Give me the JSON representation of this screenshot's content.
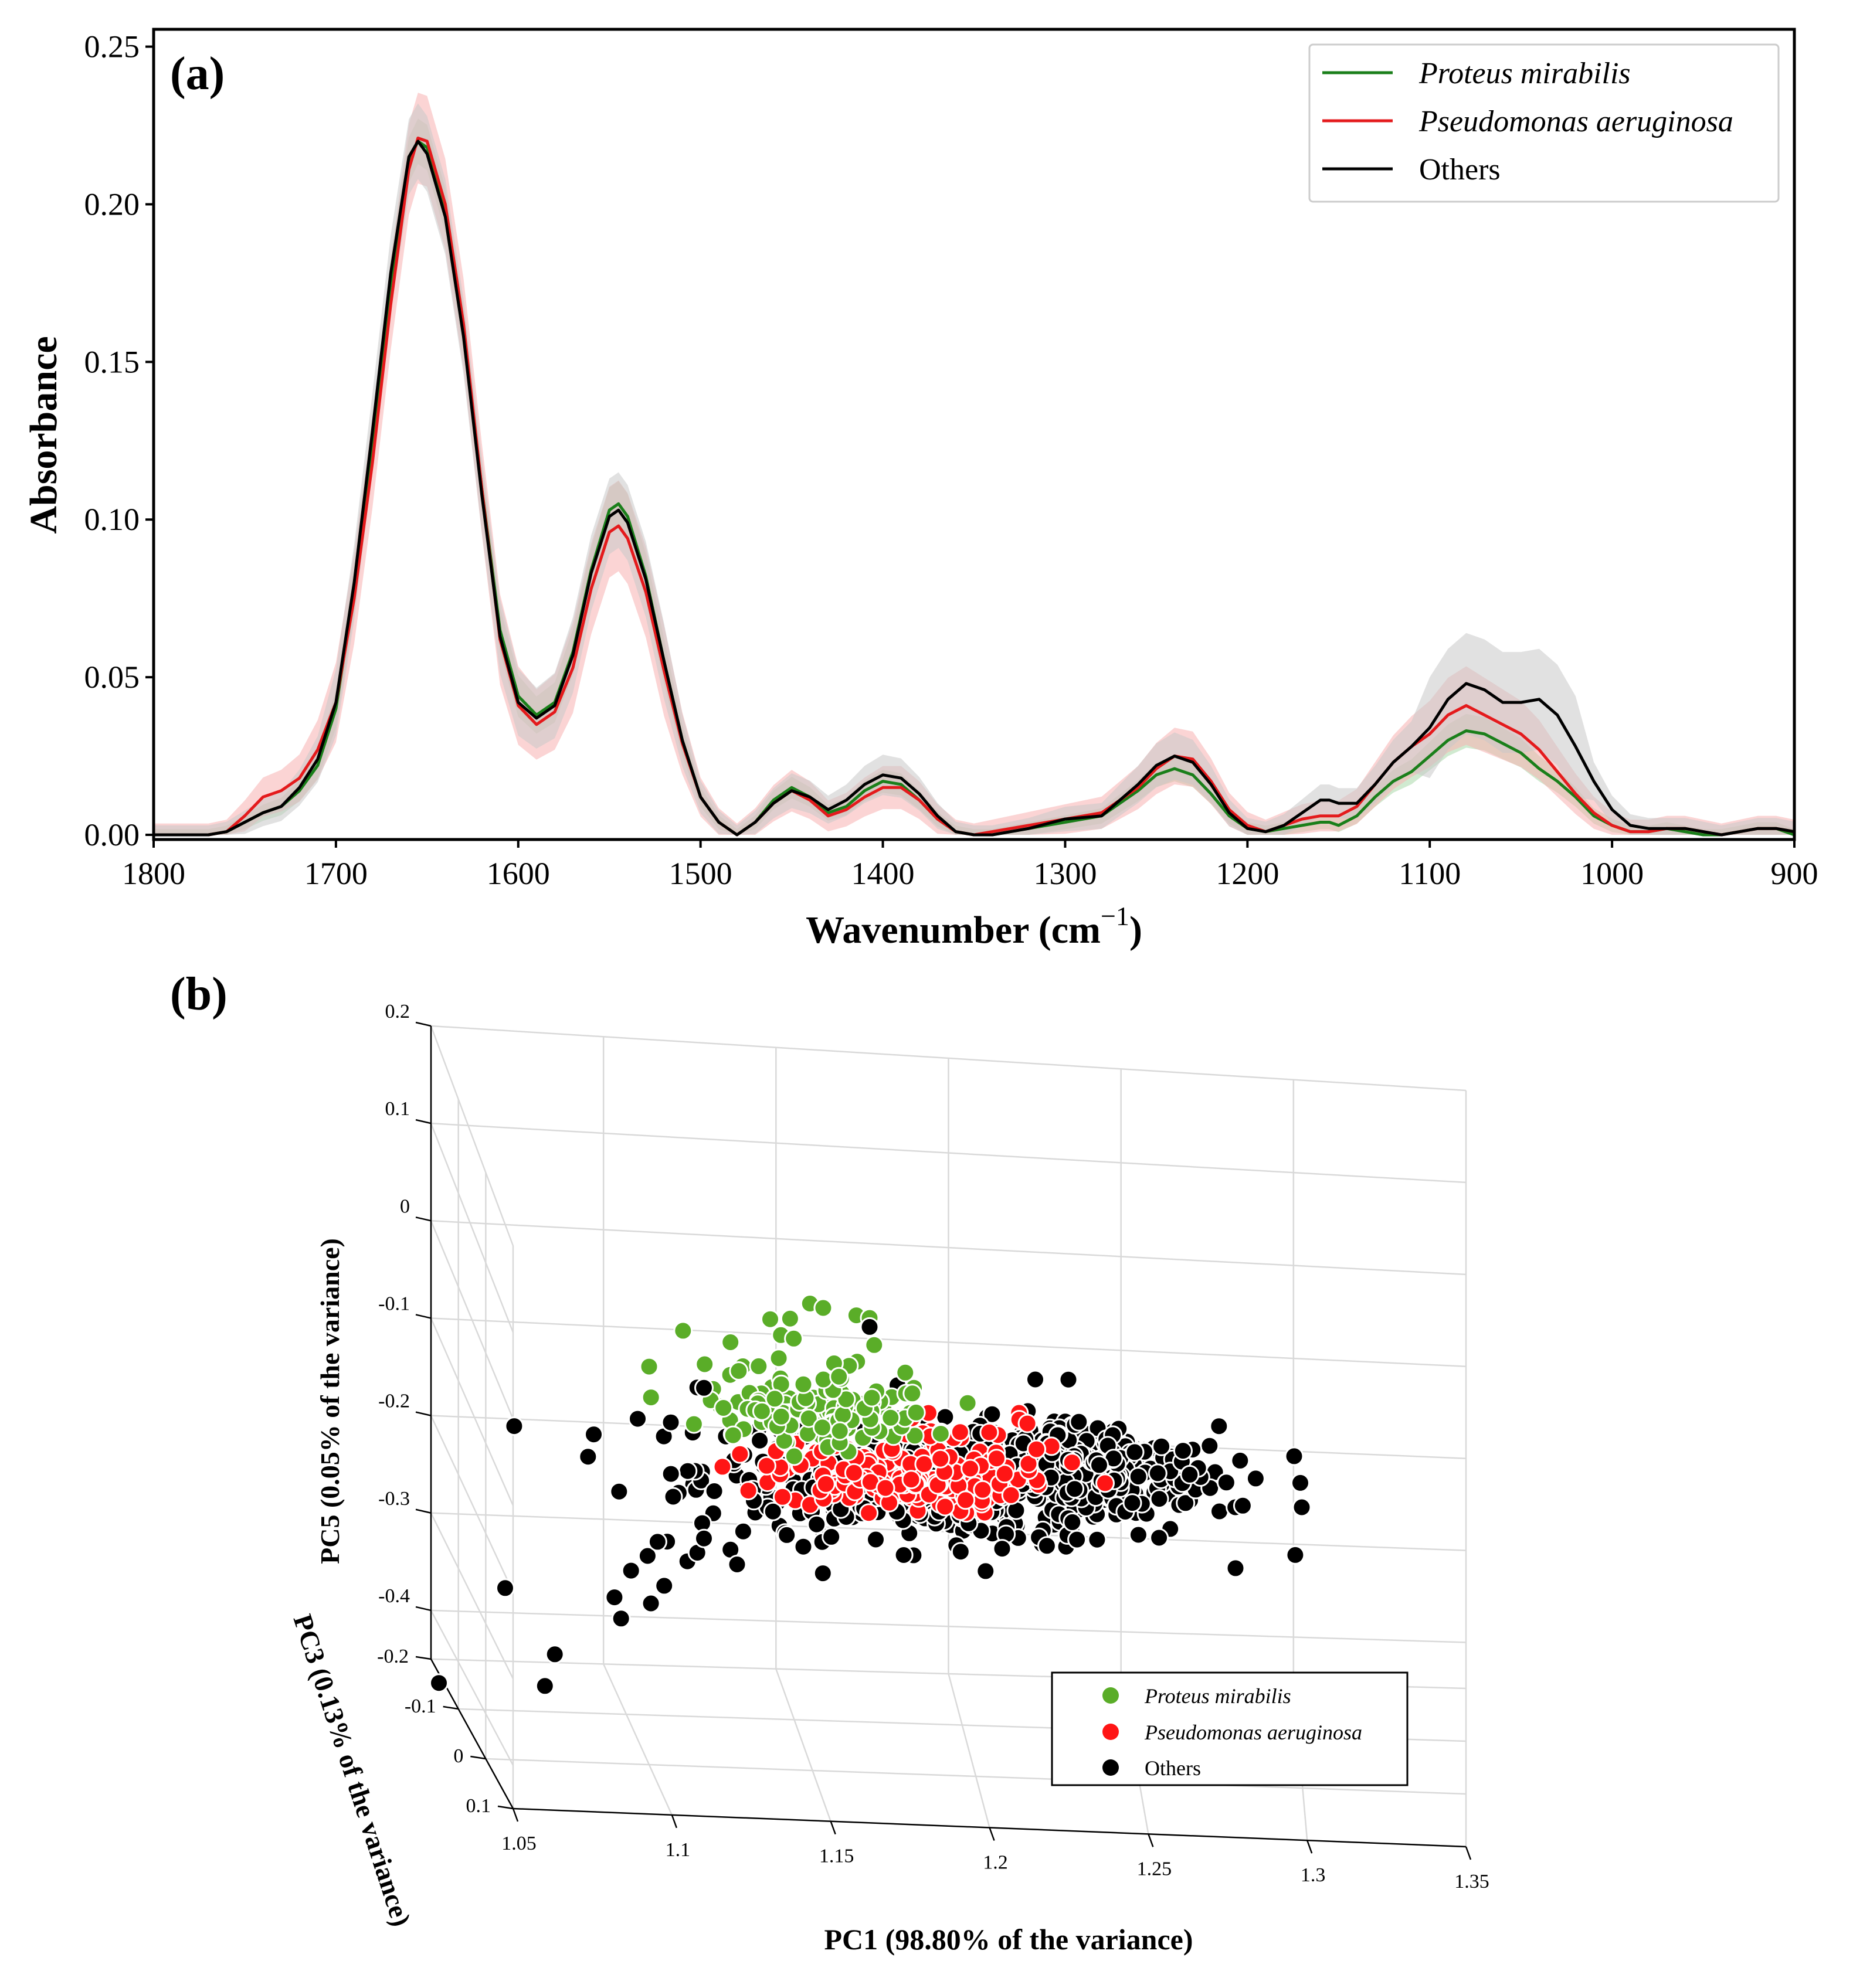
{
  "colors": {
    "green": "#1a7f1a",
    "red": "#e41a1c",
    "black": "#000000",
    "green_fill": "#a9d9a9",
    "red_fill": "#f7b0b0",
    "black_fill": "#c8c8c8",
    "green_marker": "#5aad28",
    "red_marker": "#ff1515",
    "black_marker": "#000000"
  },
  "chart_data": [
    {
      "panel": "(a)",
      "type": "line",
      "xlabel_main": "Wavenumber (cm",
      "xlabel_sup": "−1",
      "xlabel_close": ")",
      "ylabel": "Absorbance",
      "xlim": [
        1800,
        900
      ],
      "ylim": [
        0.0,
        0.25
      ],
      "xticks": [
        "1800",
        "1700",
        "1600",
        "1500",
        "1400",
        "1300",
        "1200",
        "1100",
        "1000",
        "900"
      ],
      "xtick_values": [
        1800,
        1700,
        1600,
        1500,
        1400,
        1300,
        1200,
        1100,
        1000,
        900
      ],
      "yticks": [
        "0.00",
        "0.05",
        "0.10",
        "0.15",
        "0.20",
        "0.25"
      ],
      "ytick_values": [
        0,
        0.05,
        0.1,
        0.15,
        0.2,
        0.25
      ],
      "legend": [
        "Proteus mirabilis",
        "Pseudomonas aeruginosa",
        "Others"
      ],
      "legend_position": "top-right",
      "x": [
        1800,
        1770,
        1760,
        1750,
        1740,
        1730,
        1720,
        1710,
        1700,
        1690,
        1680,
        1670,
        1660,
        1655,
        1650,
        1640,
        1630,
        1620,
        1610,
        1600,
        1590,
        1580,
        1570,
        1560,
        1550,
        1545,
        1540,
        1530,
        1520,
        1510,
        1500,
        1490,
        1480,
        1470,
        1460,
        1450,
        1440,
        1430,
        1420,
        1410,
        1400,
        1390,
        1380,
        1370,
        1360,
        1350,
        1340,
        1320,
        1300,
        1280,
        1260,
        1250,
        1240,
        1230,
        1220,
        1210,
        1200,
        1190,
        1180,
        1170,
        1160,
        1155,
        1150,
        1140,
        1130,
        1120,
        1110,
        1100,
        1090,
        1080,
        1070,
        1060,
        1050,
        1040,
        1030,
        1020,
        1010,
        1000,
        990,
        980,
        970,
        960,
        950,
        940,
        930,
        920,
        910,
        900
      ],
      "series": [
        {
          "name": "Proteus mirabilis",
          "color": "#1a7f1a",
          "values": [
            0.0,
            0.0,
            0.001,
            0.004,
            0.007,
            0.009,
            0.014,
            0.022,
            0.04,
            0.078,
            0.125,
            0.175,
            0.214,
            0.22,
            0.218,
            0.198,
            0.16,
            0.11,
            0.065,
            0.044,
            0.038,
            0.042,
            0.058,
            0.084,
            0.103,
            0.105,
            0.101,
            0.082,
            0.055,
            0.03,
            0.012,
            0.004,
            0.0,
            0.004,
            0.011,
            0.015,
            0.012,
            0.007,
            0.009,
            0.014,
            0.017,
            0.016,
            0.011,
            0.005,
            0.001,
            0.0,
            0.0,
            0.002,
            0.004,
            0.006,
            0.014,
            0.019,
            0.021,
            0.019,
            0.013,
            0.006,
            0.002,
            0.001,
            0.002,
            0.003,
            0.004,
            0.004,
            0.003,
            0.006,
            0.012,
            0.017,
            0.02,
            0.025,
            0.03,
            0.033,
            0.032,
            0.029,
            0.026,
            0.021,
            0.017,
            0.012,
            0.006,
            0.003,
            0.001,
            0.001,
            0.002,
            0.001,
            0.0,
            0.0,
            0.001,
            0.002,
            0.002,
            0.0
          ]
        },
        {
          "name": "Pseudomonas aeruginosa",
          "color": "#e41a1c",
          "values": [
            0.0,
            0.0,
            0.001,
            0.006,
            0.012,
            0.014,
            0.018,
            0.027,
            0.042,
            0.075,
            0.118,
            0.168,
            0.211,
            0.221,
            0.22,
            0.2,
            0.162,
            0.11,
            0.062,
            0.041,
            0.035,
            0.039,
            0.053,
            0.078,
            0.096,
            0.098,
            0.094,
            0.077,
            0.052,
            0.029,
            0.012,
            0.004,
            0.0,
            0.004,
            0.01,
            0.014,
            0.011,
            0.006,
            0.008,
            0.012,
            0.015,
            0.015,
            0.011,
            0.005,
            0.001,
            0.0,
            0.001,
            0.003,
            0.005,
            0.007,
            0.015,
            0.021,
            0.025,
            0.024,
            0.017,
            0.008,
            0.003,
            0.001,
            0.003,
            0.005,
            0.006,
            0.006,
            0.006,
            0.009,
            0.016,
            0.023,
            0.028,
            0.032,
            0.038,
            0.041,
            0.038,
            0.035,
            0.032,
            0.027,
            0.02,
            0.013,
            0.007,
            0.003,
            0.001,
            0.001,
            0.002,
            0.002,
            0.001,
            0.0,
            0.001,
            0.002,
            0.002,
            0.001
          ]
        },
        {
          "name": "Others",
          "color": "#000000",
          "values": [
            0.0,
            0.0,
            0.001,
            0.004,
            0.007,
            0.009,
            0.015,
            0.024,
            0.042,
            0.08,
            0.128,
            0.178,
            0.215,
            0.22,
            0.216,
            0.196,
            0.158,
            0.108,
            0.063,
            0.042,
            0.037,
            0.041,
            0.057,
            0.083,
            0.101,
            0.103,
            0.099,
            0.081,
            0.055,
            0.03,
            0.012,
            0.004,
            0.0,
            0.004,
            0.01,
            0.014,
            0.012,
            0.008,
            0.011,
            0.016,
            0.019,
            0.018,
            0.013,
            0.006,
            0.001,
            0.0,
            0.0,
            0.002,
            0.005,
            0.006,
            0.016,
            0.022,
            0.025,
            0.023,
            0.016,
            0.007,
            0.002,
            0.001,
            0.003,
            0.007,
            0.011,
            0.011,
            0.01,
            0.01,
            0.016,
            0.023,
            0.028,
            0.034,
            0.043,
            0.048,
            0.046,
            0.042,
            0.042,
            0.043,
            0.038,
            0.028,
            0.017,
            0.008,
            0.003,
            0.002,
            0.002,
            0.002,
            0.001,
            0.0,
            0.001,
            0.002,
            0.002,
            0.001
          ]
        }
      ],
      "bands": {
        "Proteus mirabilis": 0.006,
        "Pseudomonas aeruginosa": 0.012,
        "Others": 0.01
      }
    },
    {
      "panel": "(b)",
      "type": "scatter",
      "xlabel": "PC1 (98.80% of the variance)",
      "ylabel": "PC5 (0.05% of the variance)",
      "zlabel": "PC3 (0.13% of the variance)",
      "x_ticks": [
        "1.05",
        "1.1",
        "1.15",
        "1.2",
        "1.25",
        "1.3",
        "1.35"
      ],
      "x_tick_values": [
        1.05,
        1.1,
        1.15,
        1.2,
        1.25,
        1.3,
        1.35
      ],
      "y_ticks": [
        "0.2",
        "0.1",
        "0",
        "-0.1",
        "-0.2",
        "-0.3",
        "-0.4"
      ],
      "y_tick_values": [
        0.2,
        0.1,
        0,
        -0.1,
        -0.2,
        -0.3,
        -0.4
      ],
      "z_ticks": [
        "-0.2",
        "-0.1",
        "0",
        "0.1"
      ],
      "z_tick_values": [
        -0.2,
        -0.1,
        0,
        0.1
      ],
      "legend": [
        "Proteus mirabilis",
        "Pseudomonas aeruginosa",
        "Others"
      ],
      "legend_position": "bottom-right",
      "series": [
        {
          "name": "Others",
          "color": "#000000",
          "points": [
            [
              1.3,
              -0.131
            ],
            [
              1.04,
              -0.396
            ],
            [
              1.06,
              -0.29
            ],
            [
              1.075,
              -0.36
            ],
            [
              1.072,
              -0.395
            ],
            [
              1.095,
              -0.318
            ],
            [
              1.093,
              -0.295
            ],
            [
              1.098,
              -0.265
            ],
            [
              1.103,
              -0.248
            ],
            [
              1.106,
              -0.232
            ],
            [
              1.115,
              -0.252
            ],
            [
              1.118,
              -0.242
            ],
            [
              1.12,
              -0.226
            ],
            [
              1.104,
              -0.3
            ],
            [
              1.108,
              -0.28
            ],
            [
              1.128,
              -0.237
            ],
            [
              1.13,
              -0.253
            ],
            [
              1.145,
              -0.218
            ],
            [
              1.15,
              -0.23
            ],
            [
              1.1,
              -0.098
            ],
            [
              1.11,
              -0.1
            ],
            [
              1.118,
              -0.06
            ],
            [
              1.12,
              -0.06
            ],
            [
              1.17,
              0.018
            ],
            [
              1.22,
              -0.03
            ],
            [
              1.23,
              -0.028
            ],
            [
              1.205,
              -0.248
            ],
            [
              1.21,
              -0.222
            ]
          ]
        }
      ],
      "clusters": [
        {
          "name": "Others",
          "color": "#000000",
          "center": [
            1.195,
            -0.15
          ],
          "spread": [
            0.038,
            0.04
          ],
          "count": 520
        },
        {
          "name": "Others",
          "color": "#000000",
          "center": [
            1.235,
            -0.12
          ],
          "spread": [
            0.02,
            0.03
          ],
          "count": 160
        },
        {
          "name": "Pseudomonas aeruginosa",
          "color": "#ff1515",
          "center": [
            1.178,
            -0.15
          ],
          "spread": [
            0.018,
            0.022
          ],
          "count": 170
        },
        {
          "name": "Pseudomonas aeruginosa",
          "color": "#ff1515",
          "center": [
            1.2,
            -0.12
          ],
          "spread": [
            0.018,
            0.03
          ],
          "count": 40
        },
        {
          "name": "Proteus mirabilis",
          "color": "#5aad28",
          "center": [
            1.155,
            -0.08
          ],
          "spread": [
            0.017,
            0.02
          ],
          "count": 130
        },
        {
          "name": "Proteus mirabilis",
          "color": "#5aad28",
          "center": [
            1.148,
            -0.03
          ],
          "spread": [
            0.02,
            0.025
          ],
          "count": 20
        }
      ],
      "extra_green": [
        [
          1.14,
          0.02
        ],
        [
          1.146,
          0.022
        ],
        [
          1.152,
          0.04
        ],
        [
          1.156,
          0.036
        ],
        [
          1.166,
          0.03
        ],
        [
          1.17,
          0.028
        ],
        [
          1.128,
          -0.008
        ],
        [
          1.15,
          -0.05
        ]
      ]
    }
  ]
}
